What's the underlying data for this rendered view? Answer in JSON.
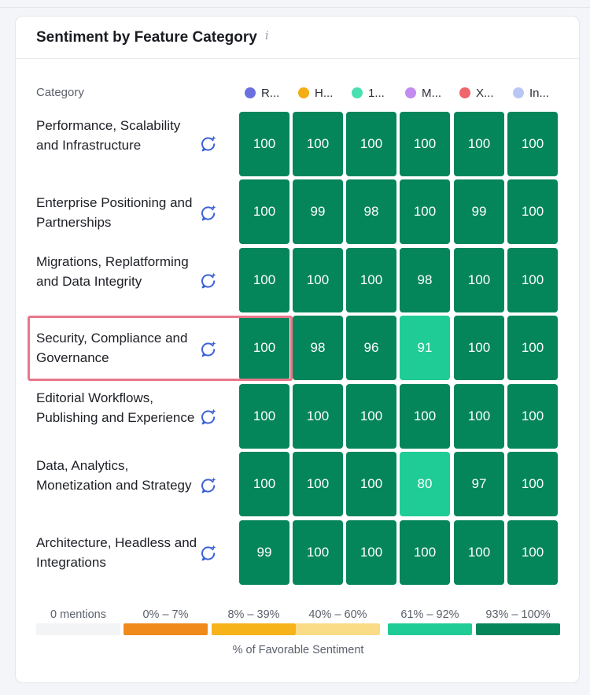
{
  "card": {
    "title": "Sentiment by Feature Category",
    "info_glyph": "i",
    "category_header": "Category"
  },
  "products": [
    {
      "label": "R...",
      "color": "#6c6fe0"
    },
    {
      "label": "H...",
      "color": "#f5ad14"
    },
    {
      "label": "1...",
      "color": "#48e0b0"
    },
    {
      "label": "M...",
      "color": "#c28bf2"
    },
    {
      "label": "X...",
      "color": "#f0646b"
    },
    {
      "label": "In...",
      "color": "#b9c7f5"
    }
  ],
  "rows": [
    {
      "label": "Performance, Scalability and Infrastructure",
      "values": [
        100,
        100,
        100,
        100,
        100,
        100
      ]
    },
    {
      "label": "Enterprise Positioning and Partnerships",
      "values": [
        100,
        99,
        98,
        100,
        99,
        100
      ]
    },
    {
      "label": "Migrations, Replatforming and Data Integrity",
      "values": [
        100,
        100,
        100,
        98,
        100,
        100
      ]
    },
    {
      "label": "Security, Compliance and Governance",
      "values": [
        100,
        98,
        96,
        91,
        100,
        100
      ]
    },
    {
      "label": "Editorial Workflows, Publishing and Experience",
      "values": [
        100,
        100,
        100,
        100,
        100,
        100
      ]
    },
    {
      "label": "Data, Analytics, Monetization and Strategy",
      "values": [
        100,
        100,
        100,
        80,
        97,
        100
      ]
    },
    {
      "label": "Architecture, Headless and Integrations",
      "values": [
        99,
        100,
        100,
        100,
        100,
        100
      ]
    }
  ],
  "highlighted_row": "Security, Compliance and Governance",
  "scale": {
    "bins": [
      {
        "label": "0 mentions",
        "color": "#f3f4f6"
      },
      {
        "label": "0% – 7%",
        "color": "#f08a1a"
      },
      {
        "label": "8% – 39%",
        "color": "#f6b31a"
      },
      {
        "label": "40% – 60%",
        "color": "#f9dc85"
      },
      {
        "label": "61% – 92%",
        "color": "#20cc95"
      },
      {
        "label": "93% – 100%",
        "color": "#05865a"
      }
    ],
    "axis_title": "% of Favorable Sentiment"
  },
  "colors": {
    "high": "#05865a",
    "mid": "#20cc95",
    "ai_icon": "#3e62d8"
  },
  "icons": {
    "row_action": "ai-sparkle-chat-icon",
    "info": "info-icon"
  }
}
